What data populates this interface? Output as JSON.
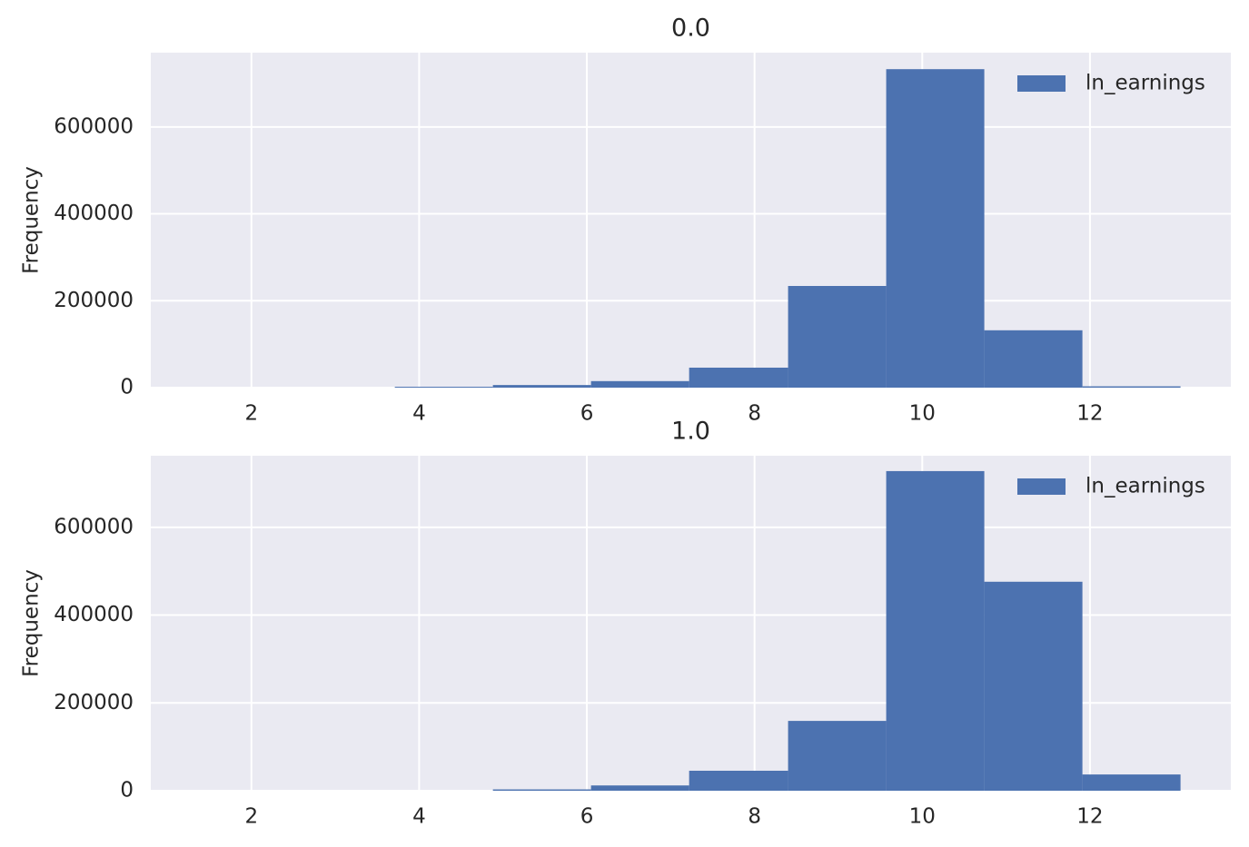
{
  "chart_data": [
    {
      "type": "histogram",
      "title": "0.0",
      "ylabel": "Frequency",
      "bins": [
        1.37,
        2.54,
        3.71,
        4.88,
        6.05,
        7.22,
        8.4,
        9.57,
        10.74,
        11.91,
        13.08
      ],
      "series": [
        {
          "name": "ln_earnings",
          "color": "#4c72b0",
          "values": [
            0,
            0,
            2000,
            6000,
            15000,
            46000,
            234000,
            733000,
            132000,
            3000
          ]
        }
      ],
      "xlim": [
        0.8,
        13.68
      ],
      "ylim": [
        0,
        771000
      ],
      "xticks": [
        2,
        4,
        6,
        8,
        10,
        12
      ],
      "yticks": [
        0,
        200000,
        400000,
        600000
      ],
      "grid": true,
      "legend": "upper right",
      "background": "#eaeaf2"
    },
    {
      "type": "histogram",
      "title": "1.0",
      "ylabel": "Frequency",
      "bins": [
        1.37,
        2.54,
        3.71,
        4.88,
        6.05,
        7.22,
        8.4,
        9.57,
        10.74,
        11.91,
        13.08
      ],
      "series": [
        {
          "name": "ln_earnings",
          "color": "#4c72b0",
          "values": [
            0,
            0,
            0,
            3000,
            12000,
            45500,
            159000,
            728000,
            476000,
            37000
          ]
        }
      ],
      "xlim": [
        0.8,
        13.68
      ],
      "ylim": [
        0,
        763000
      ],
      "xticks": [
        2,
        4,
        6,
        8,
        10,
        12
      ],
      "yticks": [
        0,
        200000,
        400000,
        600000
      ],
      "grid": true,
      "legend": "upper right",
      "background": "#eaeaf2"
    }
  ]
}
